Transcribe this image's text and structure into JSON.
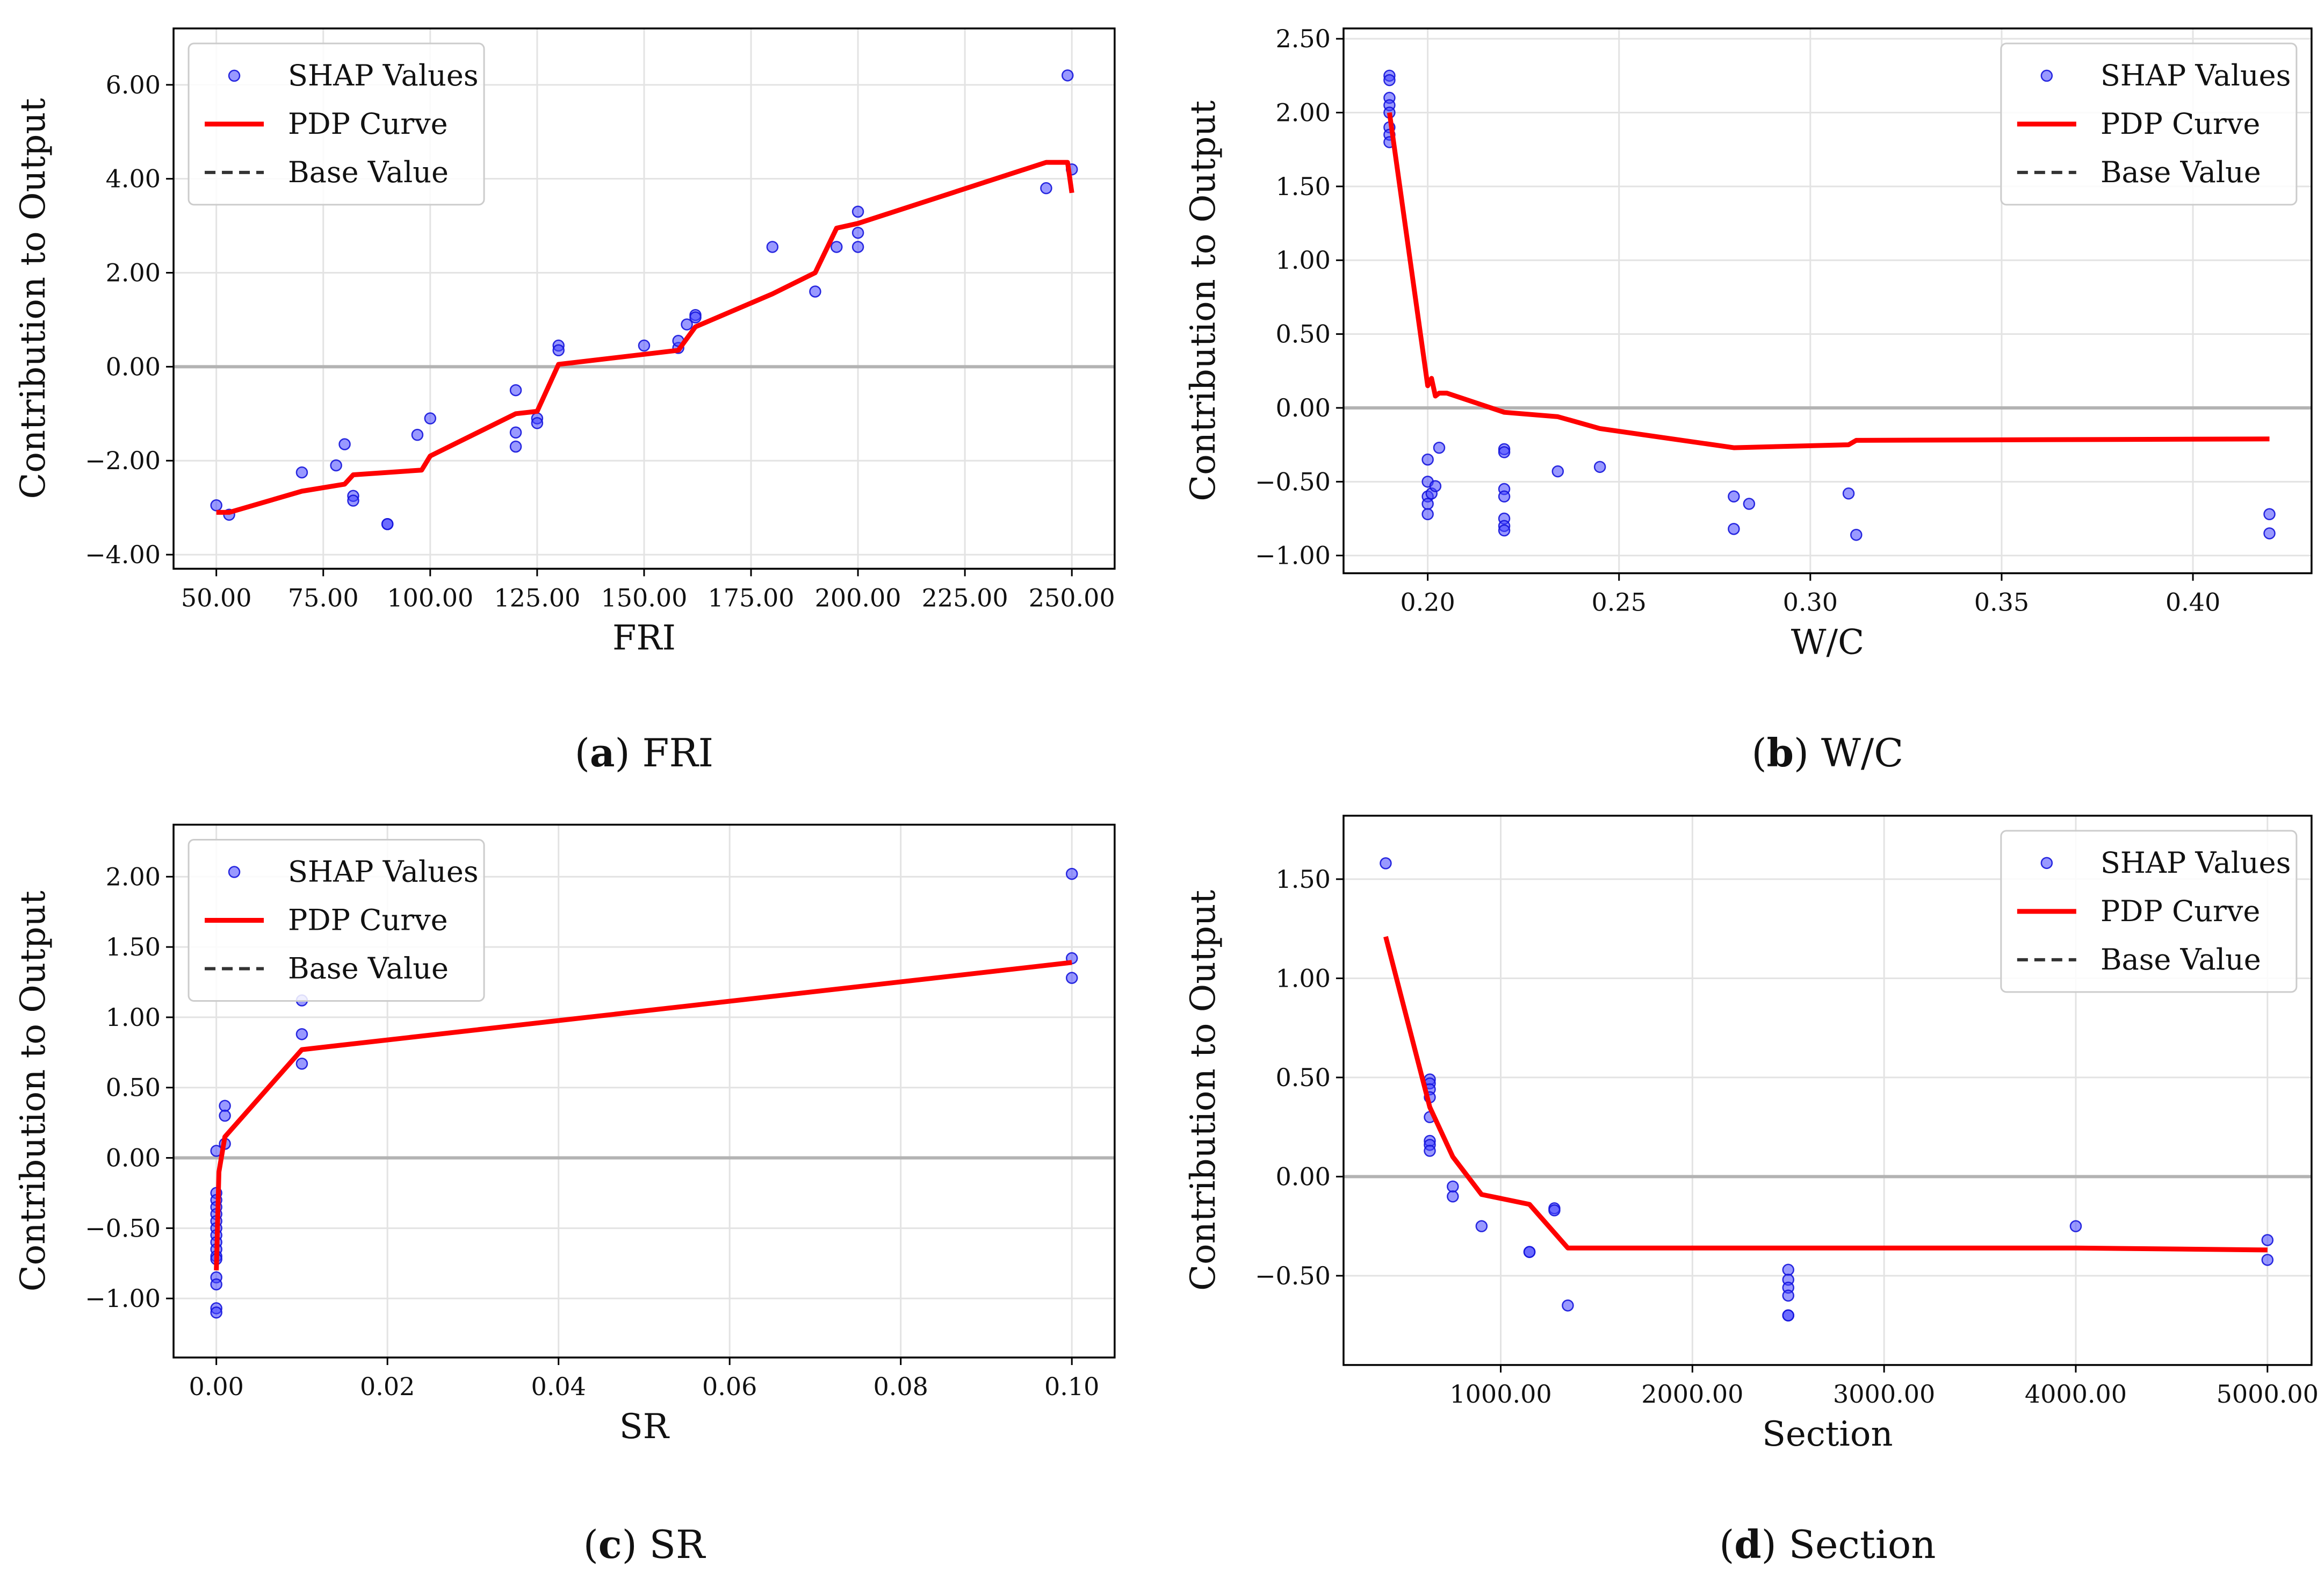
{
  "chart_data": [
    {
      "id": "a",
      "type": "scatter",
      "caption": {
        "letter": "a",
        "title": "FRI"
      },
      "xlabel": "FRI",
      "ylabel": "Contribution to Output",
      "xlim": [
        40,
        260
      ],
      "ylim": [
        -4.3,
        7.2
      ],
      "xticks": [
        50,
        75,
        100,
        125,
        150,
        175,
        200,
        225,
        250
      ],
      "yticks": [
        -4,
        -2,
        0,
        2,
        4,
        6
      ],
      "xtick_labels": [
        "50.00",
        "75.00",
        "100.00",
        "125.00",
        "150.00",
        "175.00",
        "200.00",
        "225.00",
        "250.00"
      ],
      "ytick_labels": [
        "−4.00",
        "−2.00",
        "0.00",
        "2.00",
        "4.00",
        "6.00"
      ],
      "base_value": 0,
      "legend": {
        "position": "top-left",
        "entries": [
          "SHAP Values",
          "PDP Curve",
          "Base Value"
        ]
      },
      "shap_points": {
        "x": [
          50,
          53,
          70,
          78,
          80,
          82,
          82,
          90,
          90,
          97,
          100,
          120,
          120,
          120,
          125,
          125,
          130,
          130,
          150,
          158,
          158,
          160,
          162,
          162,
          180,
          190,
          195,
          200,
          200,
          200,
          244,
          249,
          250
        ],
        "y": [
          -2.95,
          -3.15,
          -2.25,
          -2.1,
          -1.65,
          -2.75,
          -2.85,
          -3.35,
          -3.35,
          -1.45,
          -1.1,
          -0.5,
          -1.4,
          -1.7,
          -1.1,
          -1.2,
          0.45,
          0.35,
          0.45,
          0.4,
          0.55,
          0.9,
          1.1,
          1.05,
          2.55,
          1.6,
          2.55,
          3.3,
          2.85,
          2.55,
          3.8,
          6.2,
          4.2
        ]
      },
      "pdp_curve": {
        "x": [
          50,
          53,
          70,
          80,
          82,
          90,
          98,
          100,
          120,
          125,
          130,
          158,
          162,
          180,
          190,
          195,
          200,
          244,
          249,
          250
        ],
        "y": [
          -3.1,
          -3.1,
          -2.65,
          -2.5,
          -2.3,
          -2.25,
          -2.2,
          -1.9,
          -1.0,
          -0.95,
          0.05,
          0.35,
          0.85,
          1.55,
          2.0,
          2.95,
          3.05,
          4.35,
          4.35,
          3.7
        ]
      }
    },
    {
      "id": "b",
      "type": "scatter",
      "caption": {
        "letter": "b",
        "title": "W/C"
      },
      "xlabel": "W/C",
      "ylabel": "Contribution to Output",
      "xlim": [
        0.178,
        0.431
      ],
      "ylim": [
        -1.12,
        2.57
      ],
      "xticks": [
        0.2,
        0.25,
        0.3,
        0.35,
        0.4
      ],
      "yticks": [
        -1.0,
        -0.5,
        0.0,
        0.5,
        1.0,
        1.5,
        2.0,
        2.5
      ],
      "xtick_labels": [
        "0.20",
        "0.25",
        "0.30",
        "0.35",
        "0.40"
      ],
      "ytick_labels": [
        "−1.00",
        "−0.50",
        "0.00",
        "0.50",
        "1.00",
        "1.50",
        "2.00",
        "2.50"
      ],
      "base_value": 0,
      "legend": {
        "position": "top-right",
        "entries": [
          "SHAP Values",
          "PDP Curve",
          "Base Value"
        ]
      },
      "shap_points": {
        "x": [
          0.19,
          0.19,
          0.19,
          0.19,
          0.19,
          0.19,
          0.19,
          0.19,
          0.2,
          0.2,
          0.2,
          0.2,
          0.2,
          0.201,
          0.202,
          0.203,
          0.22,
          0.22,
          0.22,
          0.22,
          0.22,
          0.22,
          0.22,
          0.234,
          0.245,
          0.28,
          0.28,
          0.284,
          0.31,
          0.312,
          0.42,
          0.42
        ],
        "y": [
          2.25,
          2.22,
          2.1,
          2.05,
          2.0,
          1.9,
          1.85,
          1.8,
          -0.35,
          -0.5,
          -0.6,
          -0.65,
          -0.72,
          -0.58,
          -0.53,
          -0.27,
          -0.28,
          -0.3,
          -0.55,
          -0.6,
          -0.75,
          -0.8,
          -0.83,
          -0.43,
          -0.4,
          -0.6,
          -0.82,
          -0.65,
          -0.58,
          -0.86,
          -0.72,
          -0.85
        ]
      },
      "pdp_curve": {
        "x": [
          0.19,
          0.2,
          0.201,
          0.202,
          0.203,
          0.205,
          0.22,
          0.234,
          0.245,
          0.28,
          0.31,
          0.312,
          0.42
        ],
        "y": [
          2.0,
          0.15,
          0.2,
          0.08,
          0.1,
          0.1,
          -0.03,
          -0.06,
          -0.14,
          -0.27,
          -0.25,
          -0.22,
          -0.21
        ]
      }
    },
    {
      "id": "c",
      "type": "scatter",
      "caption": {
        "letter": "c",
        "title": "SR"
      },
      "xlabel": "SR",
      "ylabel": "Contribution to Output",
      "xlim": [
        -0.005,
        0.105
      ],
      "ylim": [
        -1.42,
        2.37
      ],
      "xticks": [
        0.0,
        0.02,
        0.04,
        0.06,
        0.08,
        0.1
      ],
      "yticks": [
        -1.0,
        -0.5,
        0.0,
        0.5,
        1.0,
        1.5,
        2.0
      ],
      "xtick_labels": [
        "0.00",
        "0.02",
        "0.04",
        "0.06",
        "0.08",
        "0.10"
      ],
      "ytick_labels": [
        "−1.00",
        "−0.50",
        "0.00",
        "0.50",
        "1.00",
        "1.50",
        "2.00"
      ],
      "base_value": 0,
      "legend": {
        "position": "top-left",
        "entries": [
          "SHAP Values",
          "PDP Curve",
          "Base Value"
        ]
      },
      "shap_points": {
        "x": [
          0,
          0,
          0,
          0,
          0,
          0,
          0,
          0,
          0,
          0,
          0,
          0,
          0,
          0,
          0,
          0,
          0.001,
          0.001,
          0.001,
          0.01,
          0.01,
          0.01,
          0.1,
          0.1,
          0.1
        ],
        "y": [
          0.05,
          -0.25,
          -0.3,
          -0.35,
          -0.4,
          -0.45,
          -0.5,
          -0.55,
          -0.6,
          -0.65,
          -0.7,
          -0.72,
          -0.85,
          -0.9,
          -1.07,
          -1.1,
          0.37,
          0.3,
          0.1,
          1.12,
          0.88,
          0.67,
          2.02,
          1.42,
          1.28
        ]
      },
      "pdp_curve": {
        "x": [
          0,
          0.0003,
          0.001,
          0.01,
          0.1
        ],
        "y": [
          -0.8,
          -0.1,
          0.15,
          0.77,
          1.39
        ]
      }
    },
    {
      "id": "d",
      "type": "scatter",
      "caption": {
        "letter": "d",
        "title": "Section"
      },
      "xlabel": "Section",
      "ylabel": "Contribution to Output",
      "xlim": [
        180,
        5230
      ],
      "ylim": [
        -0.95,
        1.82
      ],
      "xticks": [
        1000,
        2000,
        3000,
        4000,
        5000
      ],
      "yticks": [
        -0.5,
        0.0,
        0.5,
        1.0,
        1.5
      ],
      "xtick_labels": [
        "1000.00",
        "2000.00",
        "3000.00",
        "4000.00",
        "5000.00"
      ],
      "ytick_labels": [
        "−0.50",
        "0.00",
        "0.50",
        "1.00",
        "1.50"
      ],
      "base_value": 0,
      "legend": {
        "position": "top-right",
        "entries": [
          "SHAP Values",
          "PDP Curve",
          "Base Value"
        ]
      },
      "shap_points": {
        "x": [
          400,
          630,
          630,
          630,
          630,
          630,
          630,
          630,
          630,
          750,
          750,
          900,
          1150,
          1150,
          1280,
          1280,
          1350,
          2500,
          2500,
          2500,
          2500,
          2500,
          2500,
          4000,
          5000,
          5000
        ],
        "y": [
          1.58,
          0.49,
          0.47,
          0.44,
          0.4,
          0.3,
          0.18,
          0.16,
          0.13,
          -0.05,
          -0.1,
          -0.25,
          -0.38,
          -0.38,
          -0.16,
          -0.17,
          -0.65,
          -0.47,
          -0.52,
          -0.56,
          -0.6,
          -0.7,
          -0.7,
          -0.25,
          -0.32,
          -0.42
        ]
      },
      "pdp_curve": {
        "x": [
          400,
          630,
          750,
          900,
          1150,
          1350,
          2500,
          4000,
          5000
        ],
        "y": [
          1.21,
          0.35,
          0.1,
          -0.09,
          -0.14,
          -0.36,
          -0.36,
          -0.36,
          -0.37
        ]
      }
    }
  ]
}
